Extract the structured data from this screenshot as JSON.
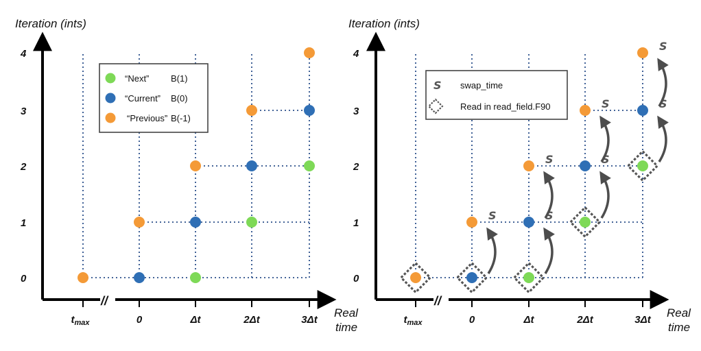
{
  "colors": {
    "next": "#7ed957",
    "current": "#2f6fb5",
    "previous": "#f49a37",
    "grid": "#2a4f8a",
    "arrow": "#4d4d4d",
    "axis": "#000000"
  },
  "left_panel": {
    "y_axis_title": "Iteration (ints)",
    "x_axis_title_line1": "Real",
    "x_axis_title_line2": "time",
    "y_ticks": [
      "0",
      "1",
      "2",
      "3",
      "4"
    ],
    "x_ticks": [
      "t",
      "0",
      "Δt",
      "2Δt",
      "3Δt"
    ],
    "x_tick_tmax_sub": "max",
    "break_mark": "//",
    "legend": [
      {
        "label": "“Next”",
        "code": "B(1)",
        "role": "next"
      },
      {
        "label": "“Current”",
        "code": "B(0)",
        "role": "current"
      },
      {
        "label": "“Previous”",
        "code": "B(-1)",
        "role": "previous"
      }
    ]
  },
  "right_panel": {
    "y_axis_title": "Iteration (ints)",
    "x_axis_title_line1": "Real",
    "x_axis_title_line2": "time",
    "y_ticks": [
      "0",
      "1",
      "2",
      "3",
      "4"
    ],
    "x_ticks": [
      "t",
      "0",
      "Δt",
      "2Δt",
      "3Δt"
    ],
    "x_tick_tmax_sub": "max",
    "break_mark": "//",
    "swap_symbol": "S",
    "legend": [
      {
        "symbol": "S",
        "label": "swap_time"
      },
      {
        "symbol": "diamond",
        "label": "Read in read_field.F90"
      }
    ]
  },
  "diagram_data": {
    "points": [
      {
        "col": 0,
        "iter": 0,
        "role": "previous"
      },
      {
        "col": 1,
        "iter": 0,
        "role": "current"
      },
      {
        "col": 2,
        "iter": 0,
        "role": "next"
      },
      {
        "col": 1,
        "iter": 1,
        "role": "previous"
      },
      {
        "col": 2,
        "iter": 1,
        "role": "current"
      },
      {
        "col": 3,
        "iter": 1,
        "role": "next"
      },
      {
        "col": 2,
        "iter": 2,
        "role": "previous"
      },
      {
        "col": 3,
        "iter": 2,
        "role": "current"
      },
      {
        "col": 4,
        "iter": 2,
        "role": "next"
      },
      {
        "col": 3,
        "iter": 3,
        "role": "previous"
      },
      {
        "col": 4,
        "iter": 3,
        "role": "current"
      },
      {
        "col": 4,
        "iter": 4,
        "role": "previous"
      }
    ],
    "read_in_points": [
      {
        "col": 0,
        "iter": 0
      },
      {
        "col": 1,
        "iter": 0
      },
      {
        "col": 2,
        "iter": 0
      },
      {
        "col": 3,
        "iter": 1
      },
      {
        "col": 4,
        "iter": 2
      }
    ],
    "swap_arrows": [
      {
        "from_col": 1,
        "from_iter": 0
      },
      {
        "from_col": 2,
        "from_iter": 0
      },
      {
        "from_col": 2,
        "from_iter": 1
      },
      {
        "from_col": 3,
        "from_iter": 1
      },
      {
        "from_col": 3,
        "from_iter": 2
      },
      {
        "from_col": 4,
        "from_iter": 2
      },
      {
        "from_col": 4,
        "from_iter": 3
      }
    ]
  }
}
